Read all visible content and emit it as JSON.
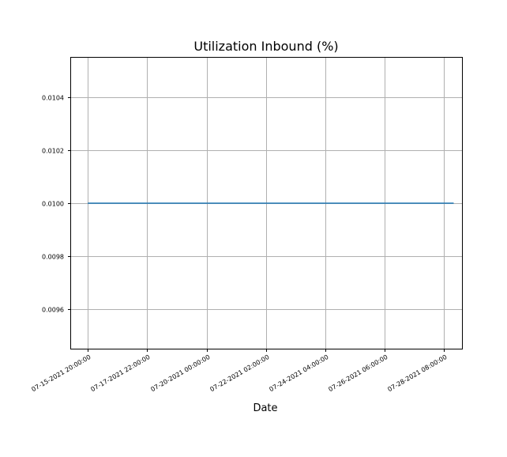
{
  "chart_data": {
    "type": "line",
    "title": "Utilization Inbound (%)",
    "xlabel": "Date",
    "ylabel": "",
    "x_ticks": [
      "07-15-2021 20:00:00",
      "07-17-2021 22:00:00",
      "07-20-2021 00:00:00",
      "07-22-2021 02:00:00",
      "07-24-2021 04:00:00",
      "07-26-2021 06:00:00",
      "07-28-2021 08:00:00"
    ],
    "y_ticks": [
      "0.0096",
      "0.0098",
      "0.0100",
      "0.0102",
      "0.0104"
    ],
    "y_tick_values": [
      0.0096,
      0.0098,
      0.01,
      0.0102,
      0.0104
    ],
    "ylim": [
      0.00945,
      0.01055
    ],
    "xlim": [
      "07-15-2021 06:00:00",
      "07-28-2021 23:00:00"
    ],
    "grid": true,
    "series": [
      {
        "color": "#1f77b4",
        "x": [
          "07-15-2021 20:00:00",
          "07-28-2021 16:00:00"
        ],
        "values": [
          0.01,
          0.01
        ]
      }
    ]
  }
}
